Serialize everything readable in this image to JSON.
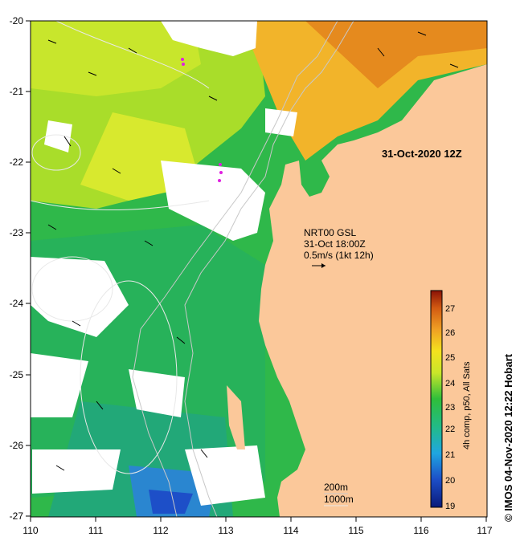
{
  "map": {
    "x_ticks": [
      "110",
      "111",
      "112",
      "113",
      "114",
      "115",
      "116",
      "117"
    ],
    "y_ticks": [
      "-20",
      "-21",
      "-22",
      "-23",
      "-24",
      "-25",
      "-26",
      "-27"
    ],
    "date_label": "31-Oct-2020 12Z",
    "current_model": "NRT00 GSL",
    "current_time": "31-Oct 18:00Z",
    "current_scale": "0.5m/s (1kt 12h)",
    "contour_200": "200m",
    "contour_1000": "1000m",
    "credit": "© IMOS 04-Nov-2020 12:22 Hobart"
  },
  "colorbar": {
    "title": "4h comp, p50, All Sats",
    "ticks": [
      "19",
      "20",
      "21",
      "22",
      "23",
      "24",
      "25",
      "26",
      "27"
    ],
    "range": [
      19,
      27.5
    ]
  },
  "colors": {
    "land": "#fbc89a",
    "nodata": "#ffffff"
  }
}
